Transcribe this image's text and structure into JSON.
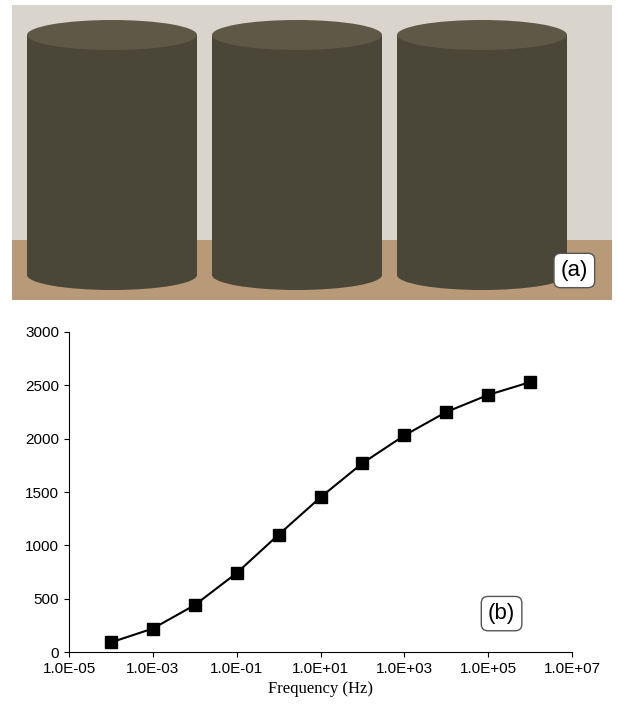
{
  "image": {
    "label": "(a)"
  },
  "chart_data": {
    "type": "line",
    "x_label": "Frequency (Hz)",
    "annotations": [
      "(b)"
    ],
    "x": [
      0.0001,
      0.001,
      0.01,
      0.1,
      1,
      10,
      100,
      1000,
      10000,
      100000,
      1000000
    ],
    "values": [
      90,
      220,
      440,
      740,
      1100,
      1450,
      1770,
      2030,
      2250,
      2410,
      2530
    ],
    "color": "#000000",
    "marker": "square",
    "line_style": "solid",
    "log": "x",
    "xlim": [
      1e-05,
      10000000
    ],
    "xticks": [
      {
        "value": 1e-05,
        "label": "1.0E-05"
      },
      {
        "value": 0.001,
        "label": "1.0E-03"
      },
      {
        "value": 0.1,
        "label": "1.0E-01"
      },
      {
        "value": 10,
        "label": "1.0E+01"
      },
      {
        "value": 1000,
        "label": "1.0E+03"
      },
      {
        "value": 100000,
        "label": "1.0E+05"
      },
      {
        "value": 10000000,
        "label": "1.0E+07"
      }
    ],
    "ylim": [
      0,
      3000
    ],
    "yticks": [
      0,
      500,
      1000,
      1500,
      2000,
      2500,
      3000
    ],
    "grid": false
  }
}
